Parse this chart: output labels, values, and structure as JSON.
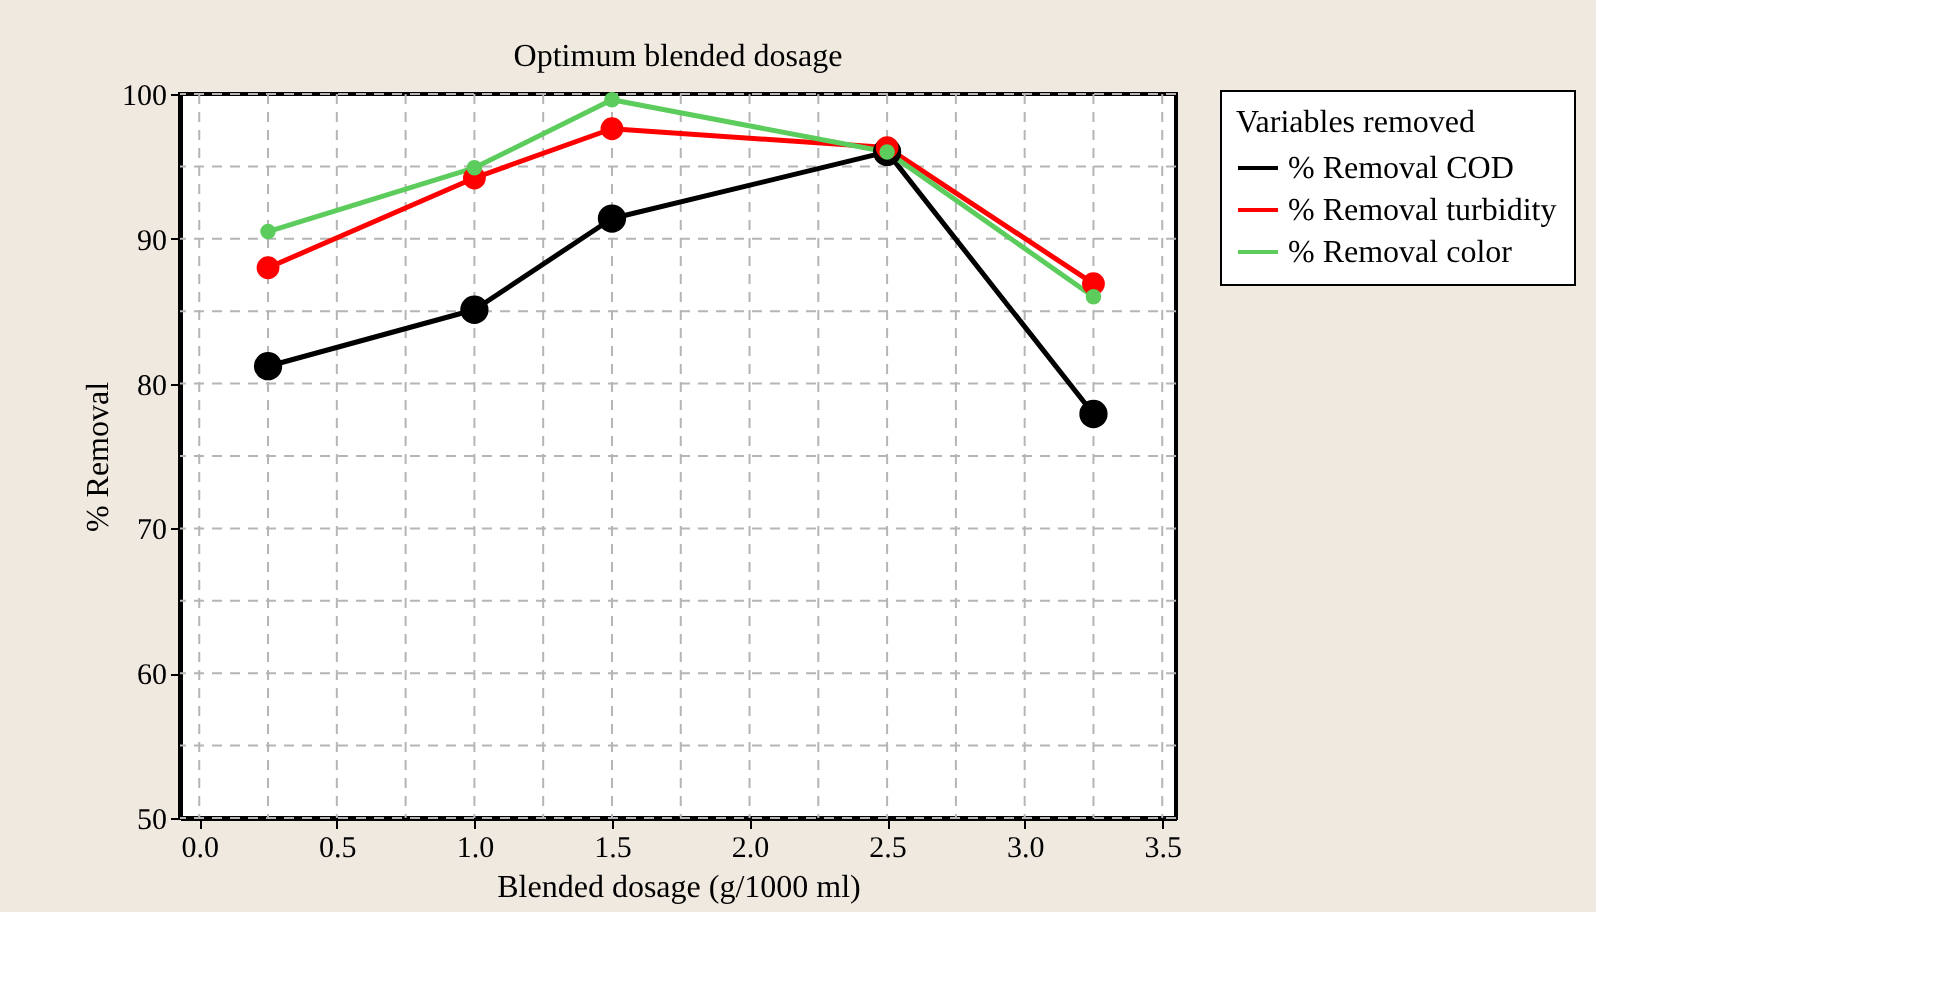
{
  "chart_data": {
    "type": "line",
    "title": "Optimum blended dosage",
    "xlabel": "Blended dosage (g/1000 ml)",
    "ylabel": "% Removal",
    "legend_title": "Variables removed",
    "x": [
      0.25,
      1.0,
      1.5,
      2.5,
      3.25
    ],
    "series": [
      {
        "name": "% Removal COD",
        "color": "#000000",
        "values": [
          81.2,
          85.1,
          91.4,
          96.0,
          77.9
        ]
      },
      {
        "name": "% Removal turbidity",
        "color": "#ff0000",
        "values": [
          88.0,
          94.2,
          97.6,
          96.3,
          86.9
        ]
      },
      {
        "name": "% Removal color",
        "color": "#5ccc5c",
        "values": [
          90.5,
          94.9,
          99.6,
          96.0,
          86.0
        ]
      }
    ],
    "xlim": [
      -0.07,
      3.55
    ],
    "xticks": [
      {
        "value": 0,
        "label": "0.0"
      },
      {
        "value": 0.25,
        "label": null
      },
      {
        "value": 0.5,
        "label": "0.5"
      },
      {
        "value": 0.75,
        "label": null
      },
      {
        "value": 1,
        "label": "1.0"
      },
      {
        "value": 1.25,
        "label": null
      },
      {
        "value": 1.5,
        "label": "1.5"
      },
      {
        "value": 1.75,
        "label": null
      },
      {
        "value": 2,
        "label": "2.0"
      },
      {
        "value": 2.25,
        "label": null
      },
      {
        "value": 2.5,
        "label": "2.5"
      },
      {
        "value": 2.75,
        "label": null
      },
      {
        "value": 3,
        "label": "3.0"
      },
      {
        "value": 3.25,
        "label": null
      },
      {
        "value": 3.5,
        "label": "3.5"
      }
    ],
    "ylim": [
      50,
      100
    ],
    "yticks": [
      50,
      {
        "value": 55,
        "label": null
      },
      60,
      {
        "value": 65,
        "label": null
      },
      70,
      {
        "value": 75,
        "label": null
      },
      80,
      {
        "value": 85,
        "label": null
      },
      90,
      {
        "value": 95,
        "label": null
      },
      100
    ],
    "grid": true,
    "legend": "top right",
    "marker": "circle",
    "line_style": "solid"
  }
}
